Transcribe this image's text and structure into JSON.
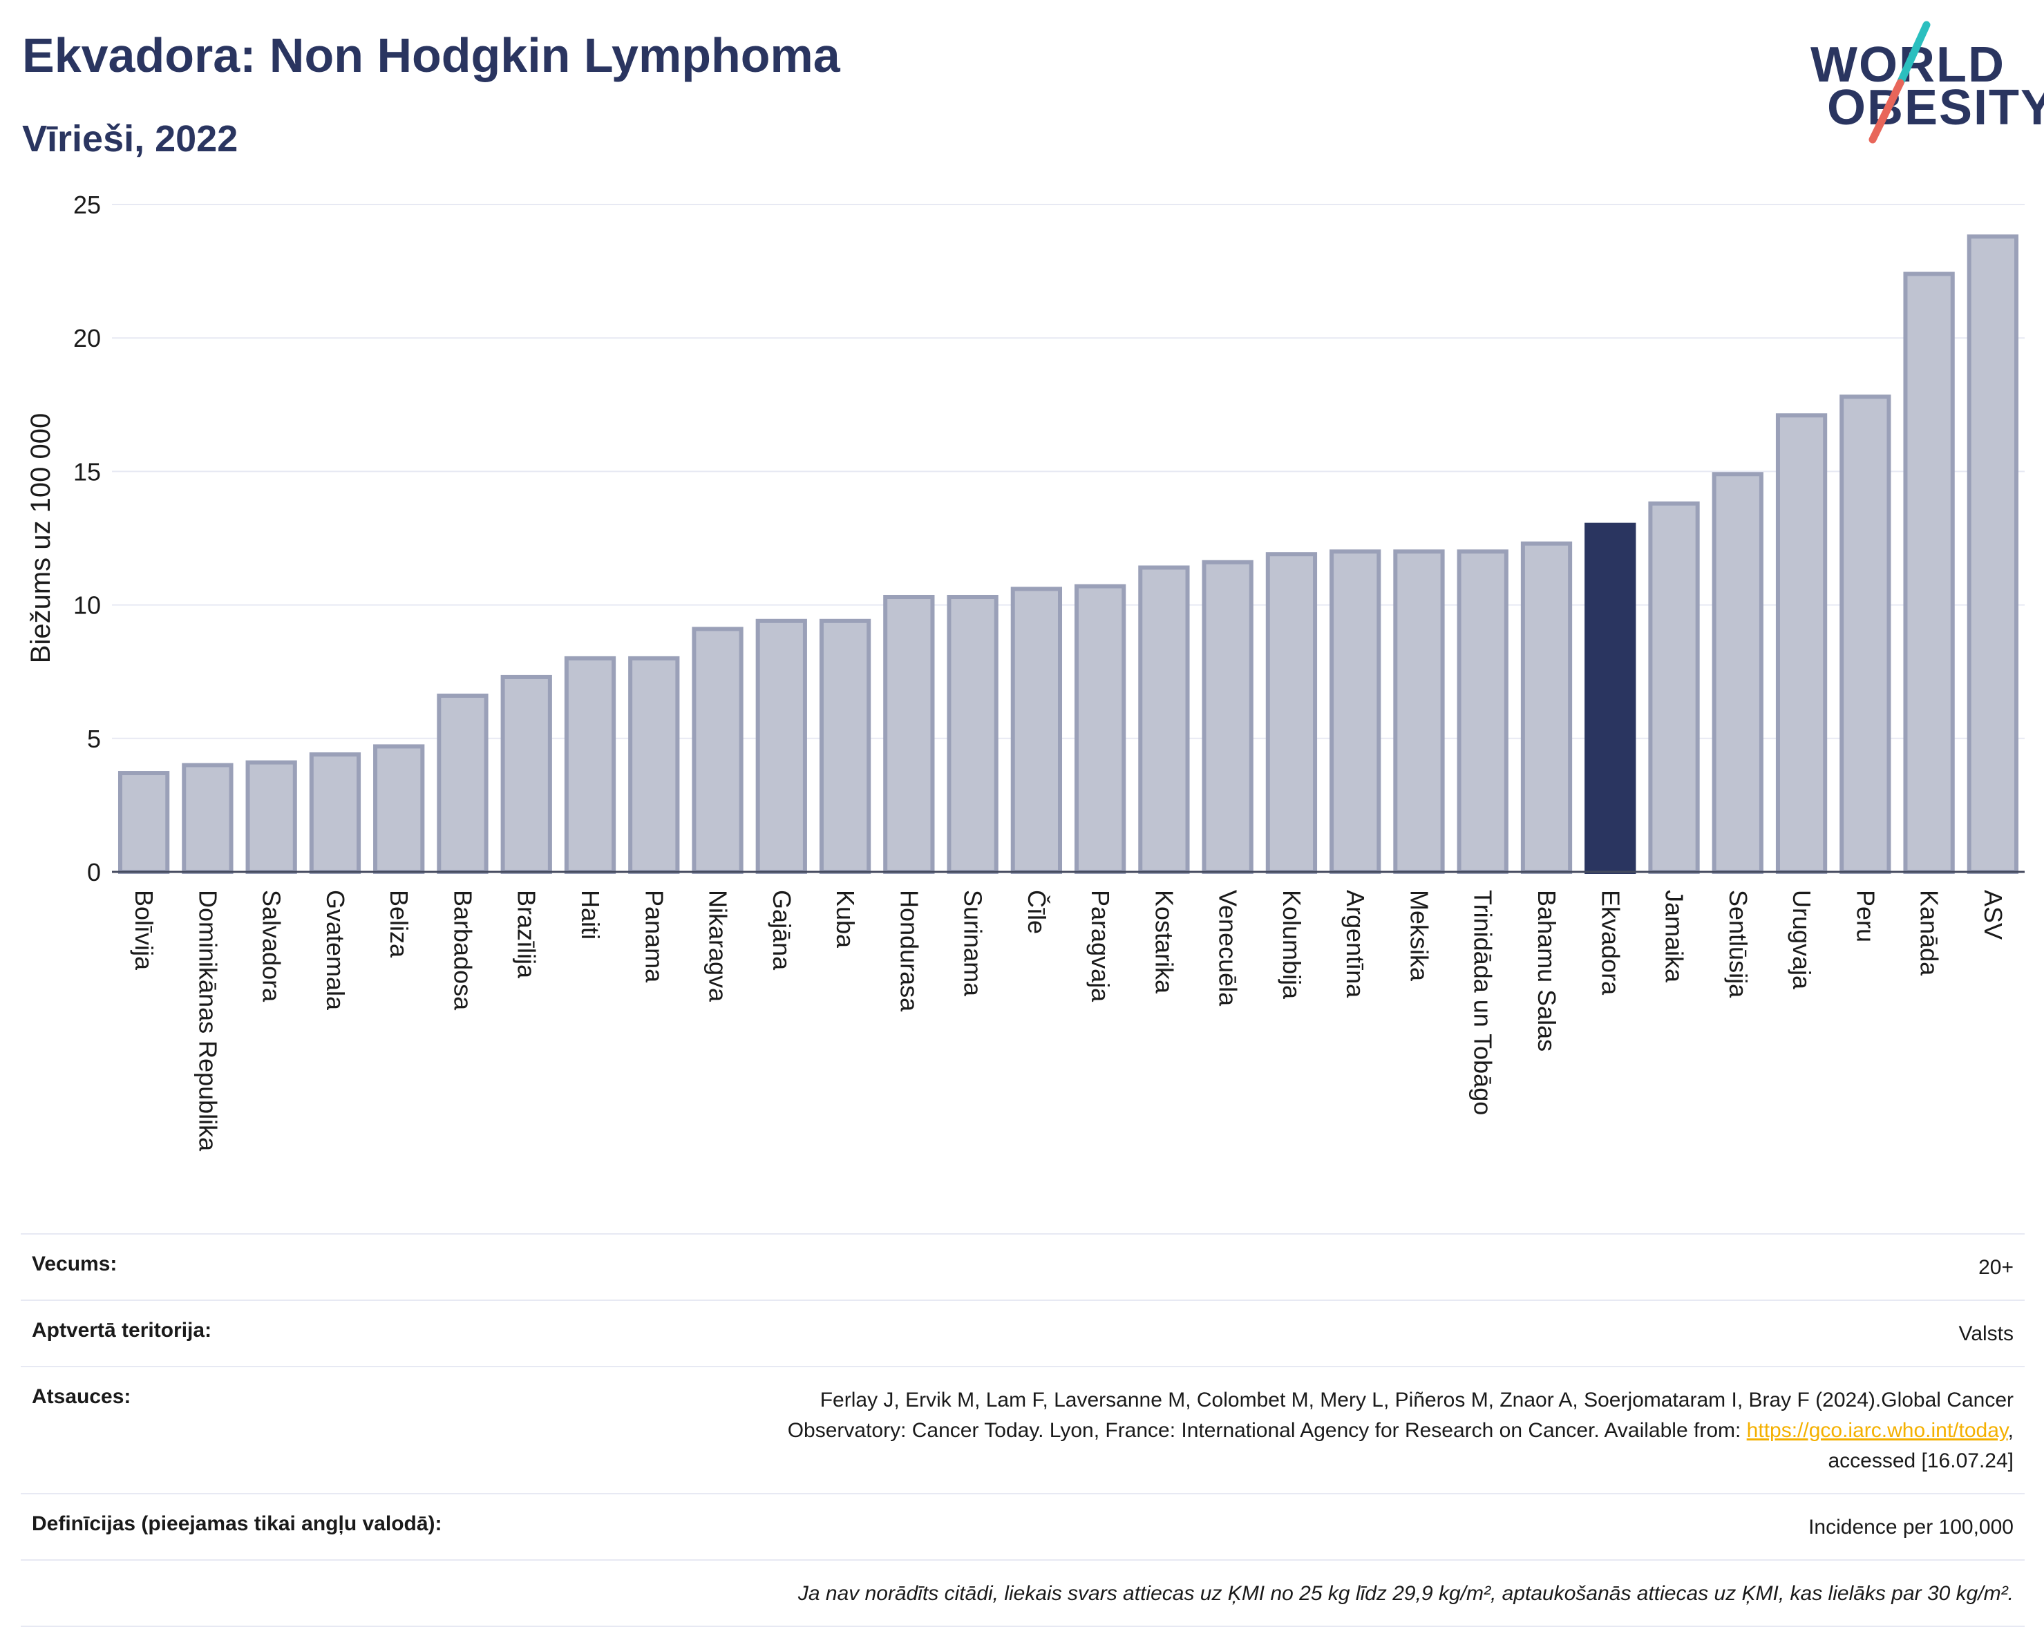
{
  "title": "Ekvadora: Non Hodgkin Lymphoma",
  "subtitle": "Vīrieši, 2022",
  "logo": {
    "line1": "WORLD",
    "line2": "OBESITY",
    "accent_colors": [
      "#2bbfbf",
      "#e8665a"
    ]
  },
  "chart_data": {
    "type": "bar",
    "ylabel": "Biežums uz 100 000",
    "xlabel": "",
    "ylim": [
      0,
      25
    ],
    "yticks": [
      0,
      5,
      10,
      15,
      20,
      25
    ],
    "grid": true,
    "highlight": "Ekvadora",
    "colors": {
      "bar": "#bfc3d1",
      "bar_edge": "#9aa0b8",
      "highlight": "#2a3560"
    },
    "categories": [
      "Bolīvija",
      "Dominikānas Republika",
      "Salvadora",
      "Gvatemala",
      "Beliza",
      "Barbadosa",
      "Brazīlija",
      "Haiti",
      "Panama",
      "Nikaragva",
      "Gajāna",
      "Kuba",
      "Hondurasa",
      "Surinama",
      "Čīle",
      "Paragvaja",
      "Kostarika",
      "Venecuēla",
      "Kolumbija",
      "Argentīna",
      "Meksika",
      "Trinidāda un Tobāgo",
      "Bahamu Salas",
      "Ekvadora",
      "Jamaika",
      "Sentlūsija",
      "Urugvaja",
      "Peru",
      "Kanāda",
      "ASV"
    ],
    "values": [
      3.7,
      4.0,
      4.1,
      4.4,
      4.7,
      6.6,
      7.3,
      8.0,
      8.0,
      9.1,
      9.4,
      9.4,
      10.3,
      10.3,
      10.6,
      10.7,
      11.4,
      11.6,
      11.9,
      12.0,
      12.0,
      12.0,
      12.3,
      13.0,
      13.8,
      14.9,
      17.1,
      17.8,
      22.4,
      23.8
    ]
  },
  "info": {
    "age_label": "Vecums:",
    "age_value": "20+",
    "territory_label": "Aptvertā teritorija:",
    "territory_value": "Valsts",
    "refs_label": "Atsauces:",
    "refs_line1": "Ferlay J, Ervik M, Lam F, Laversanne M, Colombet M, Mery L, Piñeros M, Znaor A, Soerjomataram I, Bray F (2024).Global Cancer",
    "refs_line2_pre": "Observatory: Cancer Today. Lyon, France: International Agency for Research on Cancer. Available from: ",
    "refs_link": "https://gco.iarc.who.int/today",
    "refs_line2_post": ",",
    "refs_line3": "accessed [16.07.24]",
    "defs_label": "Definīcijas (pieejamas tikai angļu valodā):",
    "defs_value": "Incidence per 100,000",
    "note": "Ja nav norādīts citādi, liekais svars attiecas uz ĶMI no 25 kg līdz 29,9 kg/m², aptaukošanās attiecas uz ĶMI, kas lielāks par 30 kg/m²."
  }
}
